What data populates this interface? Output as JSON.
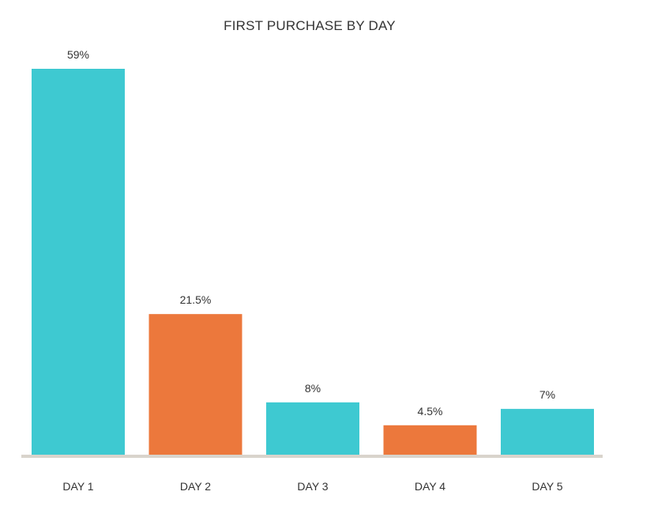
{
  "chart_data": {
    "type": "bar",
    "title": "FIRST PURCHASE BY DAY",
    "xlabel": "",
    "ylabel": "",
    "categories": [
      "DAY 1",
      "DAY 2",
      "DAY 3",
      "DAY 4",
      "DAY 5"
    ],
    "values": [
      59,
      21.5,
      8,
      4.5,
      7
    ],
    "value_labels": [
      "59%",
      "21.5%",
      "8%",
      "4.5%",
      "7%"
    ],
    "unit": "%",
    "bar_colors": [
      "#3ec9d1",
      "#ec783c",
      "#3ec9d1",
      "#ec783c",
      "#3ec9d1"
    ],
    "axis_color": "#d9d4cc",
    "text_color": "#333333",
    "ylim": [
      0,
      59
    ],
    "grid": false,
    "legend": "none"
  }
}
